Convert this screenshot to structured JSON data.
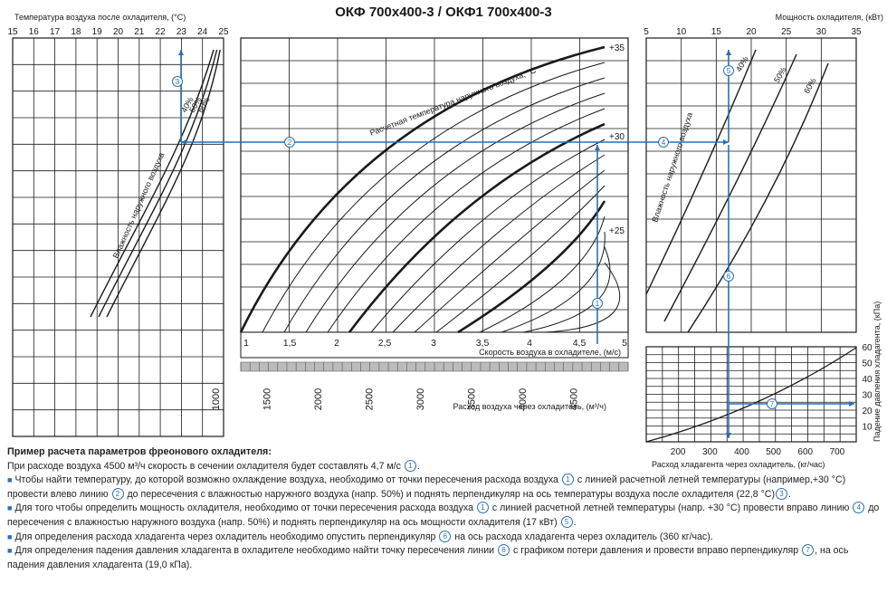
{
  "title": "ОКФ 700x400-3 / ОКФ1 700x400-3",
  "colors": {
    "grid": "#1a1a1a",
    "accent": "#2a6fb7",
    "band": "#bbbbbb"
  },
  "chart_data": [
    {
      "id": "outlet-temperature",
      "type": "line",
      "xlabel": "Температура воздуха после охладителя, (°С)",
      "xticks": [
        "15",
        "16",
        "17",
        "18",
        "19",
        "20",
        "21",
        "22",
        "23",
        "24",
        "25"
      ],
      "xlim": [
        15,
        25
      ],
      "series_label": "Влажность наружного воздуха",
      "series": [
        {
          "name": "40%"
        },
        {
          "name": "50%"
        },
        {
          "name": "60%"
        }
      ],
      "example": {
        "point": "3",
        "value": 22.8
      }
    },
    {
      "id": "airflow-vs-velocity",
      "type": "line",
      "xlabel": "Скорость воздуха в охладителе, (м/с)",
      "xticks": [
        "1",
        "1,5",
        "2",
        "2,5",
        "3",
        "3,5",
        "4",
        "4,5",
        "5"
      ],
      "xlim": [
        1,
        5
      ],
      "x2label": "Расход воздуха через охладитель, (м³/ч)",
      "x2ticks": [
        "1000",
        "1500",
        "2000",
        "2500",
        "3000",
        "3500",
        "4000",
        "4500"
      ],
      "curve_label": "Расчетная температура наружного воздуха, °С",
      "curves": [
        {
          "name": "+35"
        },
        {
          "name": "+30"
        },
        {
          "name": "+25"
        }
      ],
      "example": {
        "point": "1",
        "airflow": 4500,
        "velocity": 4.7
      }
    },
    {
      "id": "cooler-power",
      "type": "line",
      "xlabel": "Мощность охладителя, (кВт)",
      "xticks": [
        "5",
        "10",
        "15",
        "20",
        "25",
        "30",
        "35"
      ],
      "xlim": [
        5,
        35
      ],
      "series_label": "Влажность наружного воздуха",
      "series": [
        {
          "name": "40%"
        },
        {
          "name": "50%"
        },
        {
          "name": "60%"
        }
      ],
      "example": {
        "point": "5",
        "value": 17
      }
    },
    {
      "id": "refrigerant-pressure-drop",
      "type": "line",
      "xlabel": "Расход хладагента через охладитель, (кг/час)",
      "xticks": [
        "200",
        "300",
        "400",
        "500",
        "600",
        "700"
      ],
      "xlim": [
        100,
        750
      ],
      "ylabel": "Падение давления хладагента, (кПа)",
      "yticks": [
        "10",
        "20",
        "30",
        "40",
        "50",
        "60"
      ],
      "ylim": [
        0,
        60
      ],
      "example": {
        "point": "7",
        "flow": 360,
        "pressure_drop": 19.0
      }
    }
  ],
  "markers": [
    "1",
    "2",
    "3",
    "4",
    "5",
    "6",
    "7"
  ],
  "notes": {
    "title": "Пример расчета параметров фреонового охладителя:",
    "intro": [
      "При расходе воздуха 4500 м³/ч скорость в сечении охладителя будет составлять 4,7 м/с ",
      "1",
      "."
    ],
    "items": [
      [
        "Чтобы найти температуру, до которой возможно охлаждение воздуха, необходимо от точки пересечения расхода воздуха ",
        "1",
        " с линией расчетной летней температуры (например,+30 °С) провести влево линию ",
        "2",
        " до пересечения с влажностью наружного воздуха (напр. 50%) и поднять перпендикуляр на ось температуры воздуха после охладителя (22,8 °С)",
        "3",
        "."
      ],
      [
        "Для того чтобы определить мощность охладителя, необходимо от точки пересечения расхода воздуха ",
        "1",
        " с линией расчетной летней температуры (напр. +30 °С) провести вправо линию ",
        "4",
        " до пересечения с влажностью наружного воздуха (напр. 50%) и поднять перпендикуляр на ось мощности охладителя (17 кВт) ",
        "5",
        "."
      ],
      [
        "Для определения расхода хладагента через охладитель необходимо опустить перпендикуляр ",
        "6",
        " на ось расхода хладагента через охладитель (360 кг/час)."
      ],
      [
        "Для определения падения давления хладагента в охладителе необходимо найти точку пересечения линии ",
        "6",
        " с графиком потери давления и провести вправо перпендикуляр ",
        "7",
        ", на ось падения давления хладагента (19,0 кПа)."
      ]
    ]
  }
}
